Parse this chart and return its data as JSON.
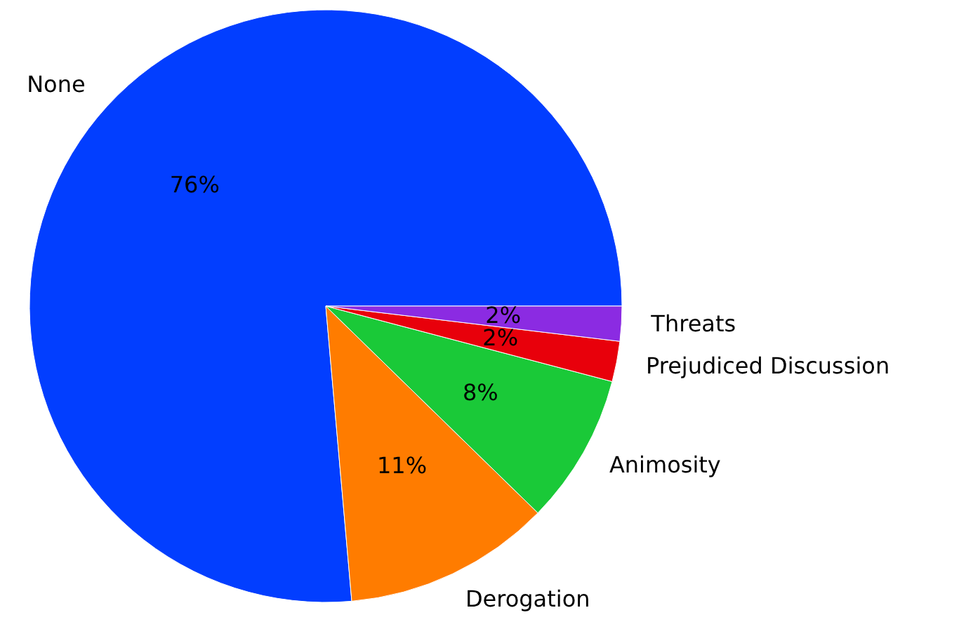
{
  "chart_data": {
    "type": "pie",
    "categories": [
      "None",
      "Derogation",
      "Animosity",
      "Prejudiced Discussion",
      "Threats"
    ],
    "values": [
      76.4,
      11.3,
      8.2,
      2.2,
      1.9
    ],
    "value_labels": [
      "76%",
      "11%",
      "8%",
      "2%",
      "2%"
    ],
    "colors": [
      "#023eff",
      "#ff7c00",
      "#1ac938",
      "#e8000b",
      "#8b2be2"
    ]
  }
}
